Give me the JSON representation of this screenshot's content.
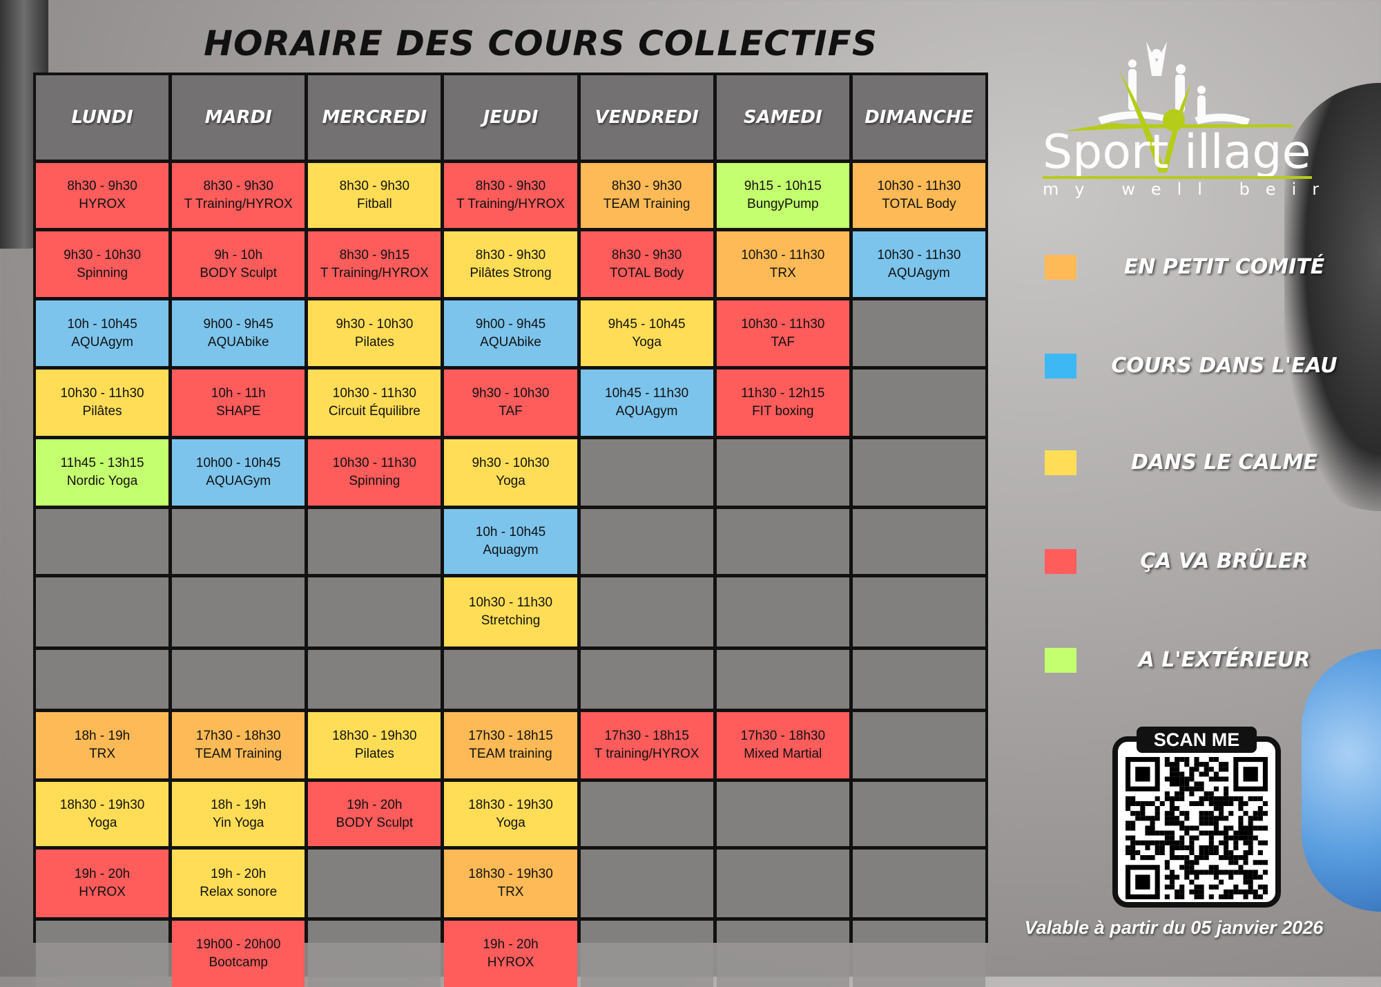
{
  "title": "HORAIRE DES COURS COLLECTIFS",
  "colors": {
    "orange": "#FDBA56",
    "blue": "#7CC4EC",
    "yellow": "#FFDD57",
    "red": "#FF5C5C",
    "green": "#C3FF6E"
  },
  "legend_colors": {
    "orange": "#FDBA56",
    "blue": "#3DB8F5",
    "yellow": "#FFDD57",
    "red": "#FF5C5C",
    "green": "#C3FF6E"
  },
  "days": [
    "LUNDI",
    "MARDI",
    "MERCREDI",
    "JEUDI",
    "VENDREDI",
    "SAMEDI",
    "DIMANCHE"
  ],
  "rows": [
    [
      {
        "time": "8h30 - 9h30",
        "name": "HYROX",
        "cat": "red"
      },
      {
        "time": "8h30 - 9h30",
        "name": "T Training/HYROX",
        "cat": "red"
      },
      {
        "time": "8h30 - 9h30",
        "name": "Fitball",
        "cat": "yellow"
      },
      {
        "time": "8h30 - 9h30",
        "name": "T Training/HYROX",
        "cat": "red"
      },
      {
        "time": "8h30 - 9h30",
        "name": "TEAM Training",
        "cat": "orange"
      },
      {
        "time": "9h15 - 10h15",
        "name": "BungyPump",
        "cat": "green"
      },
      {
        "time": "10h30 - 11h30",
        "name": "TOTAL Body",
        "cat": "orange"
      }
    ],
    [
      {
        "time": "9h30 - 10h30",
        "name": "Spinning",
        "cat": "red"
      },
      {
        "time": "9h - 10h",
        "name": "BODY Sculpt",
        "cat": "red"
      },
      {
        "time": "8h30 - 9h15",
        "name": "T Training/HYROX",
        "cat": "red"
      },
      {
        "time": "8h30 - 9h30",
        "name": "Pilâtes Strong",
        "cat": "yellow"
      },
      {
        "time": "8h30 - 9h30",
        "name": "TOTAL Body",
        "cat": "red"
      },
      {
        "time": "10h30 - 11h30",
        "name": "TRX",
        "cat": "orange"
      },
      {
        "time": "10h30 - 11h30",
        "name": "AQUAgym",
        "cat": "blue"
      }
    ],
    [
      {
        "time": "10h - 10h45",
        "name": "AQUAgym",
        "cat": "blue"
      },
      {
        "time": "9h00 - 9h45",
        "name": "AQUAbike",
        "cat": "blue"
      },
      {
        "time": "9h30 - 10h30",
        "name": "Pilates",
        "cat": "yellow"
      },
      {
        "time": "9h00 - 9h45",
        "name": "AQUAbike",
        "cat": "blue"
      },
      {
        "time": "9h45 - 10h45",
        "name": "Yoga",
        "cat": "yellow"
      },
      {
        "time": "10h30 - 11h30",
        "name": "TAF",
        "cat": "red"
      },
      null
    ],
    [
      {
        "time": "10h30 - 11h30",
        "name": "Pilâtes",
        "cat": "yellow"
      },
      {
        "time": "10h - 11h",
        "name": "SHAPE",
        "cat": "red"
      },
      {
        "time": "10h30 - 11h30",
        "name": "Circuit Équilibre",
        "cat": "yellow"
      },
      {
        "time": "9h30 - 10h30",
        "name": "TAF",
        "cat": "red"
      },
      {
        "time": "10h45 - 11h30",
        "name": "AQUAgym",
        "cat": "blue"
      },
      {
        "time": "11h30 - 12h15",
        "name": "FIT boxing",
        "cat": "red"
      },
      null
    ],
    [
      {
        "time": "11h45 - 13h15",
        "name": "Nordic Yoga",
        "cat": "green"
      },
      {
        "time": "10h00 - 10h45",
        "name": "AQUAGym",
        "cat": "blue"
      },
      {
        "time": "10h30 - 11h30",
        "name": "Spinning",
        "cat": "red"
      },
      {
        "time": "9h30 - 10h30",
        "name": "Yoga",
        "cat": "yellow"
      },
      null,
      null,
      null
    ],
    [
      null,
      null,
      null,
      {
        "time": "10h - 10h45",
        "name": "Aquagym",
        "cat": "blue"
      },
      null,
      null,
      null
    ],
    [
      null,
      null,
      null,
      {
        "time": "10h30 - 11h30",
        "name": "Stretching",
        "cat": "yellow"
      },
      null,
      null,
      null
    ],
    [
      null,
      null,
      null,
      null,
      null,
      null,
      null
    ],
    [
      {
        "time": "18h - 19h",
        "name": "TRX",
        "cat": "orange"
      },
      {
        "time": "17h30 - 18h30",
        "name": "TEAM Training",
        "cat": "orange"
      },
      {
        "time": "18h30 - 19h30",
        "name": "Pilates",
        "cat": "yellow"
      },
      {
        "time": "17h30 - 18h15",
        "name": "TEAM training",
        "cat": "orange"
      },
      {
        "time": "17h30 - 18h15",
        "name": "T training/HYROX",
        "cat": "red"
      },
      {
        "time": "17h30 - 18h30",
        "name": "Mixed Martial",
        "cat": "red"
      },
      null
    ],
    [
      {
        "time": "18h30 - 19h30",
        "name": "Yoga",
        "cat": "yellow"
      },
      {
        "time": "18h - 19h",
        "name": "Yin Yoga",
        "cat": "yellow"
      },
      {
        "time": "19h - 20h",
        "name": "BODY Sculpt",
        "cat": "red"
      },
      {
        "time": "18h30 - 19h30",
        "name": "Yoga",
        "cat": "yellow"
      },
      null,
      null,
      null
    ],
    [
      {
        "time": "19h - 20h",
        "name": "HYROX",
        "cat": "red"
      },
      {
        "time": "19h - 20h",
        "name": "Relax sonore",
        "cat": "yellow"
      },
      null,
      {
        "time": "18h30 - 19h30",
        "name": "TRX",
        "cat": "orange"
      },
      null,
      null,
      null
    ],
    [
      null,
      {
        "time": "19h00 - 20h00",
        "name": "Bootcamp",
        "cat": "red"
      },
      null,
      {
        "time": "19h - 20h",
        "name": "HYROX",
        "cat": "red"
      },
      null,
      null,
      null
    ]
  ],
  "legend": [
    {
      "label": "EN PETIT COMITÉ",
      "cat": "orange"
    },
    {
      "label": "COURS DANS L'EAU",
      "cat": "blue"
    },
    {
      "label": "DANS LE CALME",
      "cat": "yellow"
    },
    {
      "label": "ÇA VA BRÛLER",
      "cat": "red"
    },
    {
      "label": "A L'EXTÉRIEUR",
      "cat": "green"
    }
  ],
  "logo": {
    "brand_a": "Sport",
    "brand_b": "Village",
    "tagline": "my well being"
  },
  "qr": {
    "label": "SCAN ME"
  },
  "validity": "Valable à partir du 05 janvier 2026"
}
